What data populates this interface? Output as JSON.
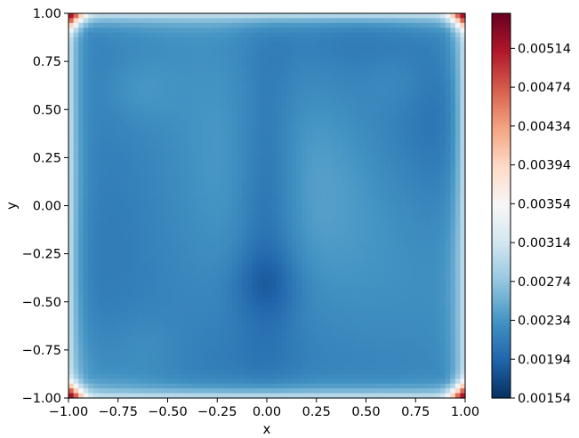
{
  "chart_data": {
    "type": "heatmap",
    "title": "",
    "xlabel": "x",
    "ylabel": "y",
    "xlim": [
      -1.0,
      1.0
    ],
    "ylim": [
      -1.0,
      1.0
    ],
    "x_ticks": [
      "−1.00",
      "−0.75",
      "−0.50",
      "−0.25",
      "0.00",
      "0.25",
      "0.50",
      "0.75",
      "1.00"
    ],
    "y_ticks": [
      "1.00",
      "0.75",
      "0.50",
      "0.25",
      "0.00",
      "−0.25",
      "−0.50",
      "−0.75",
      "−1.00"
    ],
    "colormap": "RdBu_r",
    "colorbar": {
      "range": [
        0.00154,
        0.0055
      ],
      "ticks": [
        "0.00514",
        "0.00474",
        "0.00434",
        "0.00394",
        "0.00354",
        "0.00314",
        "0.00274",
        "0.00234",
        "0.00194",
        "0.00154"
      ]
    },
    "field_summary": {
      "interior_typical": 0.0022,
      "minimum_near": [
        0.0,
        -0.4
      ],
      "minimum_value": 0.00165,
      "corner_values": 0.0055,
      "edge_values": 0.0032
    },
    "grid": false
  }
}
